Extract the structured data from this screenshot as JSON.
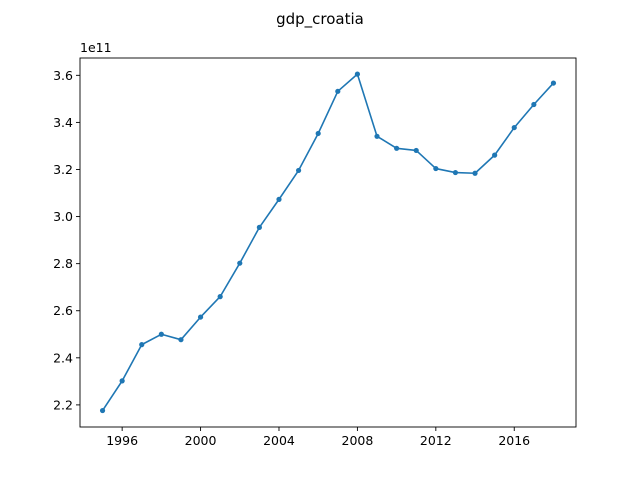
{
  "chart_data": {
    "type": "line",
    "title": "gdp_croatia",
    "xlabel": "",
    "ylabel": "",
    "y_offset_label": "1e11",
    "y_scale": 100000000000,
    "xlim": [
      1993.85,
      2019.15
    ],
    "ylim": [
      210610000000.0,
      367360000000.0
    ],
    "x_ticks": [
      1996,
      2000,
      2004,
      2008,
      2012,
      2016
    ],
    "x_tick_labels": [
      "1996",
      "2000",
      "2004",
      "2008",
      "2012",
      "2016"
    ],
    "y_ticks": [
      220000000000.0,
      240000000000.0,
      260000000000.0,
      280000000000.0,
      300000000000.0,
      320000000000.0,
      340000000000.0,
      360000000000.0
    ],
    "y_tick_labels": [
      "2.2",
      "2.4",
      "2.6",
      "2.8",
      "3.0",
      "3.2",
      "3.4",
      "3.6"
    ],
    "grid": false,
    "series": [
      {
        "color": "#1f77b4",
        "marker": "circle",
        "x": [
          1995,
          1996,
          1997,
          1998,
          1999,
          2000,
          2001,
          2002,
          2003,
          2004,
          2005,
          2006,
          2007,
          2008,
          2009,
          2010,
          2011,
          2012,
          2013,
          2014,
          2015,
          2016,
          2017,
          2018
        ],
        "y": [
          217600000000.0,
          230200000000.0,
          245600000000.0,
          250000000000.0,
          247700000000.0,
          257300000000.0,
          266000000000.0,
          280200000000.0,
          295400000000.0,
          307300000000.0,
          319600000000.0,
          335300000000.0,
          353200000000.0,
          360500000000.0,
          334100000000.0,
          329000000000.0,
          328100000000.0,
          320400000000.0,
          318700000000.0,
          318400000000.0,
          326100000000.0,
          337800000000.0,
          347600000000.0,
          356700000000.0
        ]
      }
    ]
  }
}
